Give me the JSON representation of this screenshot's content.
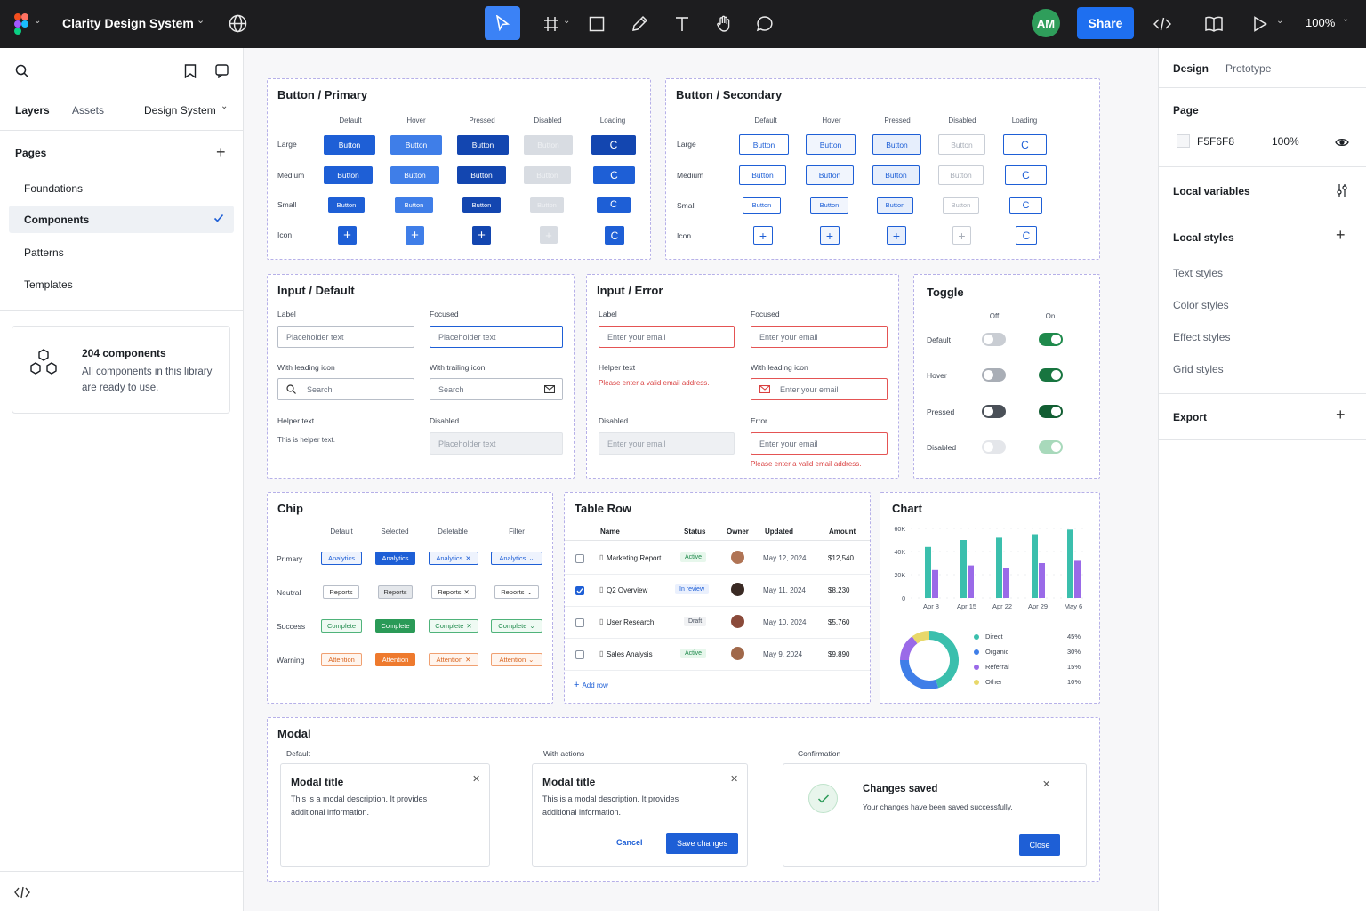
{
  "topbar": {
    "file_name": "Clarity Design System",
    "avatar_initials": "AM",
    "share_label": "Share",
    "zoom": "100%"
  },
  "left": {
    "tabs": {
      "layers": "Layers",
      "assets": "Assets",
      "library": "Design System"
    },
    "pages_title": "Pages",
    "pages": [
      "Foundations",
      "Components",
      "Patterns",
      "Templates"
    ],
    "summary": {
      "title": "204 components",
      "desc1": "All components in this library",
      "desc2": "are ready to use."
    }
  },
  "right": {
    "tabs": {
      "design": "Design",
      "prototype": "Prototype"
    },
    "page_label": "Page",
    "page_color": "F5F6F8",
    "page_opacity": "100%",
    "local_variables": "Local variables",
    "local_styles": "Local styles",
    "styles": [
      "Text styles",
      "Color styles",
      "Effect styles",
      "Grid styles"
    ],
    "export": "Export"
  },
  "btn_primary": {
    "title": "Button / Primary",
    "states": [
      "Default",
      "Hover",
      "Pressed",
      "Disabled",
      "Loading"
    ],
    "sizes": [
      "Large",
      "Medium",
      "Small",
      "Icon"
    ],
    "label": "Button"
  },
  "btn_secondary": {
    "title": "Button / Secondary",
    "states": [
      "Default",
      "Hover",
      "Pressed",
      "Disabled",
      "Loading"
    ],
    "sizes": [
      "Large",
      "Medium",
      "Small",
      "Icon"
    ],
    "label": "Button"
  },
  "input_default": {
    "title": "Input / Default",
    "label": "Label",
    "focused": "Focused",
    "placeholder": "Placeholder text",
    "leading": "With leading icon",
    "trailing": "With trailing icon",
    "search": "Search",
    "helper": "Helper text",
    "helper_text": "This is helper text.",
    "disabled": "Disabled"
  },
  "input_error": {
    "title": "Input / Error",
    "label": "Label",
    "focused": "Focused",
    "email": "Enter your email",
    "helper": "Helper text",
    "error_msg": "Please enter a valid email address.",
    "leading": "With leading icon",
    "disabled": "Disabled",
    "error": "Error"
  },
  "toggle": {
    "title": "Toggle",
    "off": "Off",
    "on": "On",
    "rows": [
      "Default",
      "Hover",
      "Pressed",
      "Disabled"
    ]
  },
  "chip": {
    "title": "Chip",
    "cols": [
      "Default",
      "Selected",
      "Deletable",
      "Filter"
    ],
    "rows": [
      {
        "name": "Primary",
        "label": "Analytics"
      },
      {
        "name": "Neutral",
        "label": "Reports"
      },
      {
        "name": "Success",
        "label": "Complete"
      },
      {
        "name": "Warning",
        "label": "Attention"
      }
    ]
  },
  "table": {
    "title": "Table Row",
    "headers": [
      "Name",
      "Status",
      "Owner",
      "Updated",
      "Amount"
    ],
    "rows": [
      {
        "name": "Marketing Report",
        "status": "Active",
        "updated": "May 12, 2024",
        "amount": "$12,540",
        "checked": false
      },
      {
        "name": "Q2 Overview",
        "status": "In review",
        "updated": "May 11, 2024",
        "amount": "$8,230",
        "checked": true
      },
      {
        "name": "User Research",
        "status": "Draft",
        "updated": "May 10, 2024",
        "amount": "$5,760",
        "checked": false
      },
      {
        "name": "Sales Analysis",
        "status": "Active",
        "updated": "May 9, 2024",
        "amount": "$9,890",
        "checked": false
      }
    ],
    "add_row": "Add row"
  },
  "chart": {
    "title": "Chart"
  },
  "chart_data": [
    {
      "type": "bar",
      "categories": [
        "Apr 8",
        "Apr 15",
        "Apr 22",
        "Apr 29",
        "May 6"
      ],
      "yticks": [
        "0",
        "20K",
        "40K",
        "60K"
      ],
      "ylim": [
        0,
        60000
      ],
      "series": [
        {
          "values": [
            44000,
            50000,
            52000,
            55000,
            59000
          ],
          "color": "#3bbfad"
        },
        {
          "values": [
            24000,
            28000,
            26000,
            30000,
            32000
          ],
          "color": "#9a6ae8"
        }
      ]
    },
    {
      "type": "pie",
      "labels": [
        "Direct",
        "Organic",
        "Referral",
        "Other"
      ],
      "values": [
        45,
        30,
        15,
        10
      ],
      "display": [
        "45%",
        "30%",
        "15%",
        "10%"
      ],
      "colors": [
        "#3bbfad",
        "#3f7ee8",
        "#9a6ae8",
        "#e8d86a"
      ]
    }
  ],
  "modal": {
    "title": "Modal",
    "variants": [
      "Default",
      "With actions",
      "Confirmation"
    ],
    "modal_title": "Modal title",
    "desc1": "This is a modal description. It provides",
    "desc2": "additional information.",
    "cancel": "Cancel",
    "save": "Save changes",
    "confirm_title": "Changes saved",
    "confirm_desc": "Your changes have been saved successfully.",
    "close": "Close"
  }
}
